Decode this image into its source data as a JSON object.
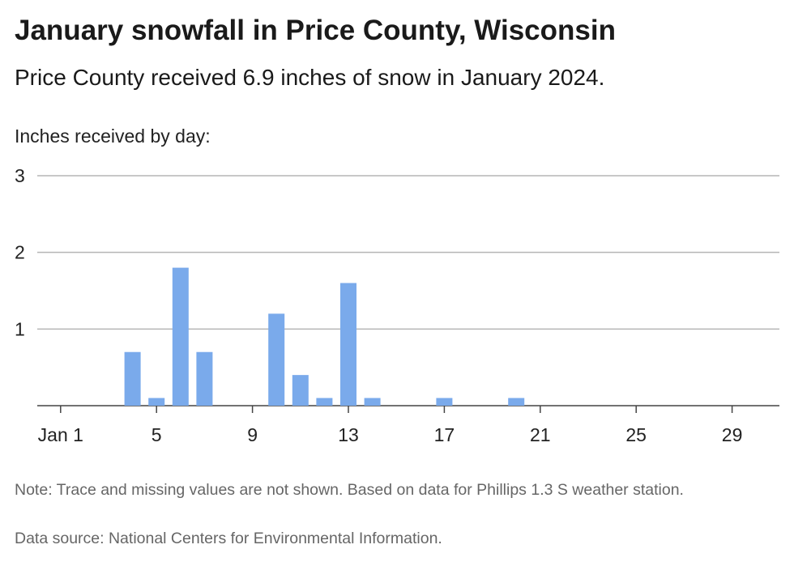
{
  "chart_data": {
    "type": "bar",
    "title": "January snowfall in Price County, Wisconsin",
    "subtitle": "Price County received 6.9 inches of snow in January 2024.",
    "ylabel": "Inches received by day:",
    "ylim": [
      0,
      3
    ],
    "yticks": [
      1,
      2,
      3
    ],
    "xlim": [
      1,
      31
    ],
    "xticks": [
      {
        "day": 1,
        "label": "Jan 1"
      },
      {
        "day": 5,
        "label": "5"
      },
      {
        "day": 9,
        "label": "9"
      },
      {
        "day": 13,
        "label": "13"
      },
      {
        "day": 17,
        "label": "17"
      },
      {
        "day": 21,
        "label": "21"
      },
      {
        "day": 25,
        "label": "25"
      },
      {
        "day": 29,
        "label": "29"
      }
    ],
    "days": [
      1,
      2,
      3,
      4,
      5,
      6,
      7,
      8,
      9,
      10,
      11,
      12,
      13,
      14,
      15,
      16,
      17,
      18,
      19,
      20,
      21,
      22,
      23,
      24,
      25,
      26,
      27,
      28,
      29,
      30,
      31
    ],
    "values": [
      0,
      0,
      0,
      0.7,
      0.1,
      1.8,
      0.7,
      0,
      0,
      1.2,
      0.4,
      0.1,
      1.6,
      0.1,
      0,
      0,
      0.1,
      0,
      0,
      0.1,
      0,
      0,
      0,
      0,
      0,
      0,
      0,
      0,
      0,
      0,
      0
    ],
    "bar_color": "#7aaaeb",
    "grid": true
  },
  "footer": {
    "note": "Note: Trace and missing values are not shown. Based on data for Phillips 1.3 S weather station.",
    "source": "Data source: National Centers for Environmental Information."
  }
}
